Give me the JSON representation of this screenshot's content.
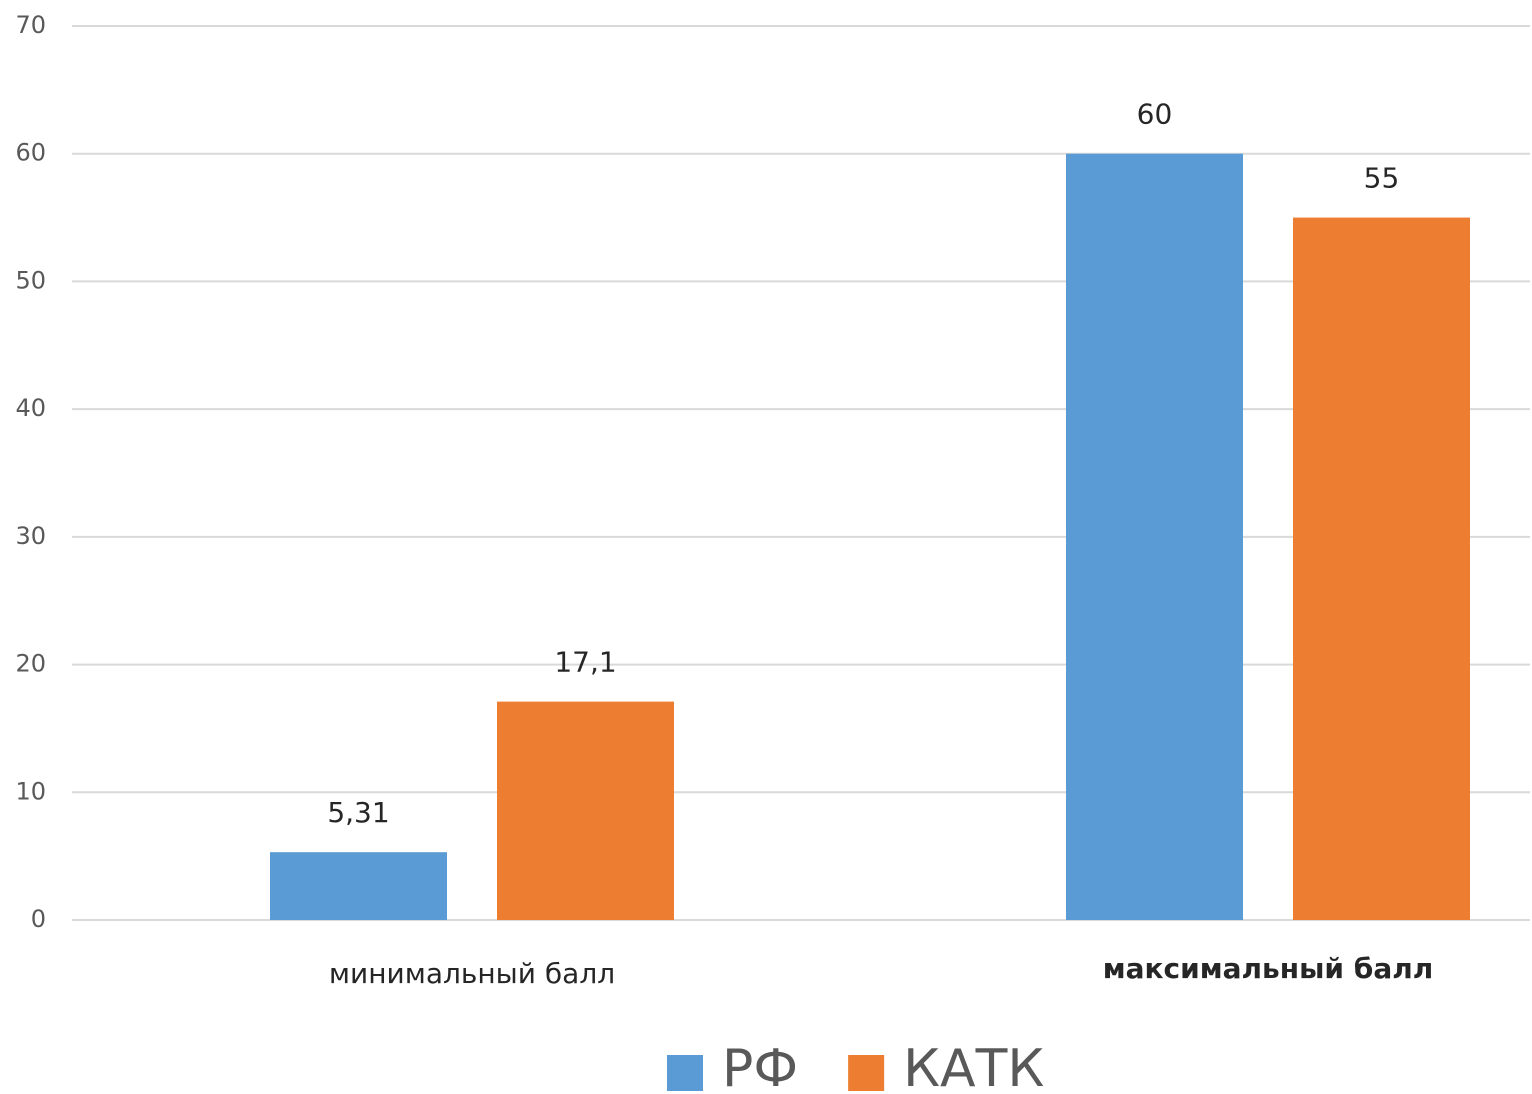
{
  "chart_data": {
    "type": "bar",
    "categories": [
      "минимальный балл",
      "максимальный балл"
    ],
    "series": [
      {
        "name": "РФ",
        "color": "#5b9bd5",
        "values": [
          5.31,
          60
        ],
        "value_labels": [
          "5,31",
          "60"
        ]
      },
      {
        "name": "КАТК",
        "color": "#ed7d31",
        "values": [
          17.1,
          55
        ],
        "value_labels": [
          "17,1",
          "55"
        ]
      }
    ],
    "ylim": [
      0,
      70
    ],
    "yticks": [
      0,
      10,
      20,
      30,
      40,
      50,
      60,
      70
    ],
    "grid": true,
    "legend": "bottom"
  }
}
